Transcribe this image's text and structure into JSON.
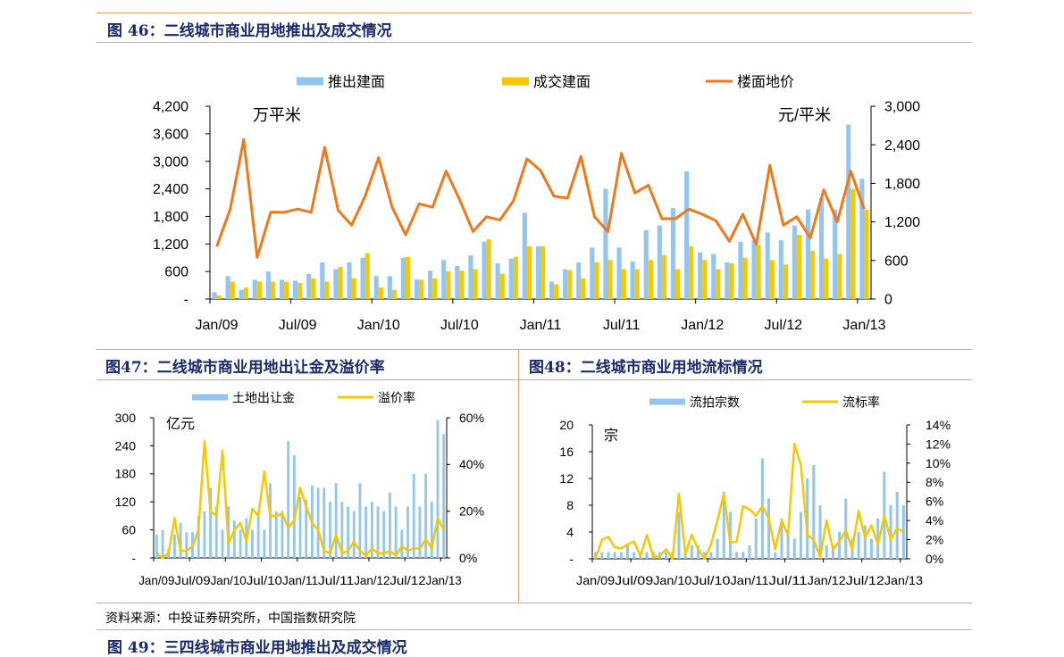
{
  "colors": {
    "bar_blue": "#92c5f0",
    "bar_gold": "#f5c800",
    "line_orange": "#f07818",
    "line_yellow": "#f5c800",
    "title_navy": "#1a2a6c",
    "rule": "#f0a070"
  },
  "fig46": {
    "title": "图 46：二线城市商业用地推出及成交情况"
  },
  "fig47": {
    "title": "图47：二线城市商业用地出让金及溢价率"
  },
  "fig48": {
    "title": "图48：二线城市商业用地流标情况"
  },
  "fig49": {
    "title": "图 49：三四线城市商业用地推出及成交情况"
  },
  "source": "资料来源：中投证券研究所，中国指数研究院",
  "chart_data": [
    {
      "id": "c46",
      "type": "bar",
      "x": [
        "Jan/09",
        "Feb/09",
        "Mar/09",
        "Apr/09",
        "May/09",
        "Jun/09",
        "Jul/09",
        "Aug/09",
        "Sep/09",
        "Oct/09",
        "Nov/09",
        "Dec/09",
        "Jan/10",
        "Feb/10",
        "Mar/10",
        "Apr/10",
        "May/10",
        "Jun/10",
        "Jul/10",
        "Aug/10",
        "Sep/10",
        "Oct/10",
        "Nov/10",
        "Dec/10",
        "Jan/11",
        "Feb/11",
        "Mar/11",
        "Apr/11",
        "May/11",
        "Jun/11",
        "Jul/11",
        "Aug/11",
        "Sep/11",
        "Oct/11",
        "Nov/11",
        "Dec/11",
        "Jan/12",
        "Feb/12",
        "Mar/12",
        "Apr/12",
        "May/12",
        "Jun/12",
        "Jul/12",
        "Aug/12",
        "Sep/12",
        "Oct/12",
        "Nov/12",
        "Dec/12",
        "Jan/13"
      ],
      "xticks": [
        "Jan/09",
        "Jul/09",
        "Jan/10",
        "Jul/10",
        "Jan/11",
        "Jul/11",
        "Jan/12",
        "Jul/12",
        "Jan/13"
      ],
      "yticks_left": [
        "-",
        "600",
        "1,200",
        "1,800",
        "2,400",
        "3,000",
        "3,600",
        "4,200"
      ],
      "yticks_right": [
        "0",
        "600",
        "1,200",
        "1,800",
        "2,400",
        "3,000"
      ],
      "ylim_left": [
        0,
        4200
      ],
      "ylim_right": [
        0,
        3000
      ],
      "unit_left": "万平米",
      "unit_right": "元/平米",
      "legend": [
        "推出建面",
        "成交建面",
        "楼面地价"
      ],
      "series": [
        {
          "name": "推出建面",
          "axis": "left",
          "kind": "bar",
          "values": [
            150,
            500,
            200,
            420,
            600,
            420,
            400,
            550,
            800,
            650,
            800,
            900,
            500,
            500,
            900,
            430,
            620,
            850,
            720,
            950,
            1250,
            780,
            880,
            1880,
            1150,
            380,
            650,
            800,
            1120,
            2400,
            1120,
            820,
            1500,
            1600,
            1980,
            2780,
            1020,
            980,
            800,
            1250,
            1280,
            1450,
            1280,
            1600,
            1950,
            2200,
            1950,
            3800,
            2620
          ]
        },
        {
          "name": "成交建面",
          "axis": "left",
          "kind": "bar",
          "values": [
            80,
            380,
            250,
            380,
            380,
            380,
            350,
            450,
            380,
            700,
            450,
            1000,
            250,
            200,
            920,
            420,
            450,
            600,
            620,
            650,
            1300,
            550,
            920,
            1150,
            1150,
            320,
            630,
            450,
            800,
            850,
            650,
            650,
            850,
            960,
            650,
            1150,
            850,
            650,
            780,
            900,
            1180,
            850,
            750,
            1400,
            1050,
            880,
            980,
            2400,
            1950
          ]
        },
        {
          "name": "楼面地价",
          "axis": "right",
          "kind": "line",
          "values": [
            820,
            1400,
            2480,
            650,
            1350,
            1350,
            1400,
            1350,
            2360,
            1380,
            1150,
            1600,
            2200,
            1430,
            1000,
            1480,
            1430,
            1990,
            1550,
            1050,
            1280,
            1230,
            1530,
            2180,
            2000,
            1600,
            1570,
            2220,
            1280,
            1050,
            2270,
            1650,
            1770,
            1250,
            1250,
            1400,
            1320,
            1220,
            900,
            1320,
            850,
            2080,
            1150,
            1280,
            950,
            1700,
            1200,
            1990,
            1400
          ]
        }
      ]
    },
    {
      "id": "c47",
      "type": "bar",
      "xticks": [
        "Jan/09",
        "Jul/09",
        "Jan/10",
        "Jul/10",
        "Jan/11",
        "Jul/11",
        "Jan/12",
        "Jul/12",
        "Jan/13"
      ],
      "yticks_left": [
        "-",
        "60",
        "120",
        "180",
        "240",
        "300"
      ],
      "yticks_right": [
        "0%",
        "20%",
        "40%",
        "60%"
      ],
      "ylim_left": [
        0,
        300
      ],
      "ylim_right": [
        0,
        60
      ],
      "unit_left": "亿元",
      "legend": [
        "土地出让金",
        "溢价率"
      ],
      "series": [
        {
          "name": "土地出让金",
          "axis": "left",
          "kind": "bar",
          "values": [
            50,
            60,
            20,
            50,
            75,
            55,
            55,
            90,
            100,
            150,
            110,
            60,
            110,
            80,
            60,
            85,
            60,
            100,
            60,
            160,
            100,
            100,
            250,
            220,
            130,
            125,
            155,
            150,
            150,
            120,
            160,
            120,
            110,
            100,
            160,
            110,
            120,
            110,
            100,
            140,
            110,
            60,
            110,
            180,
            110,
            180,
            120,
            295,
            265
          ]
        },
        {
          "name": "溢价率",
          "axis": "right",
          "kind": "line",
          "values": [
            2,
            0,
            2,
            17,
            3,
            3,
            5,
            12,
            50,
            20,
            18,
            46,
            6,
            12,
            15,
            7,
            21,
            18,
            37,
            18,
            18,
            19,
            13,
            16,
            30,
            22,
            15,
            12,
            3,
            2,
            10,
            2,
            3,
            7,
            3,
            1,
            4,
            2,
            2,
            3,
            1,
            5,
            3,
            4,
            4,
            8,
            4,
            17,
            12
          ]
        }
      ]
    },
    {
      "id": "c48",
      "type": "bar",
      "xticks": [
        "Jan/09",
        "Jul/09",
        "Jan/10",
        "Jul/10",
        "Jan/11",
        "Jul/11",
        "Jan/12",
        "Jul/12",
        "Jan/13"
      ],
      "yticks_left": [
        "-",
        "4",
        "8",
        "12",
        "16",
        "20"
      ],
      "yticks_right": [
        "0%",
        "2%",
        "4%",
        "6%",
        "8%",
        "10%",
        "12%",
        "14%"
      ],
      "ylim_left": [
        0,
        20
      ],
      "ylim_right": [
        0,
        14
      ],
      "unit_left": "宗",
      "legend": [
        "流拍宗数",
        "流标率"
      ],
      "series": [
        {
          "name": "流拍宗数",
          "axis": "left",
          "kind": "bar",
          "values": [
            1,
            1,
            1,
            1,
            1,
            2,
            1,
            1,
            1,
            1,
            1,
            1,
            1,
            7,
            1,
            2,
            2,
            1,
            1,
            3,
            10,
            7,
            1,
            1,
            2,
            6,
            15,
            9,
            1,
            6,
            4,
            3,
            7,
            12,
            14,
            8,
            2,
            2,
            4,
            9,
            3,
            4,
            5,
            3,
            6,
            13,
            8,
            10,
            8
          ]
        },
        {
          "name": "流标率",
          "axis": "right",
          "kind": "line",
          "values": [
            0,
            2,
            2.3,
            1.2,
            1.1,
            1.5,
            1.8,
            0.3,
            2.5,
            0.2,
            0.3,
            1,
            0,
            6.8,
            0.5,
            2.5,
            1,
            0,
            1.5,
            4,
            6.8,
            1.7,
            1.8,
            5.5,
            5.2,
            4.5,
            5.5,
            4.2,
            1,
            4,
            2.5,
            12,
            9.8,
            2.5,
            2,
            0.2,
            4,
            1,
            1.8,
            3,
            1,
            5,
            2.2,
            3.5,
            1.5,
            4.5,
            2,
            3.2,
            2.8
          ]
        }
      ]
    }
  ]
}
